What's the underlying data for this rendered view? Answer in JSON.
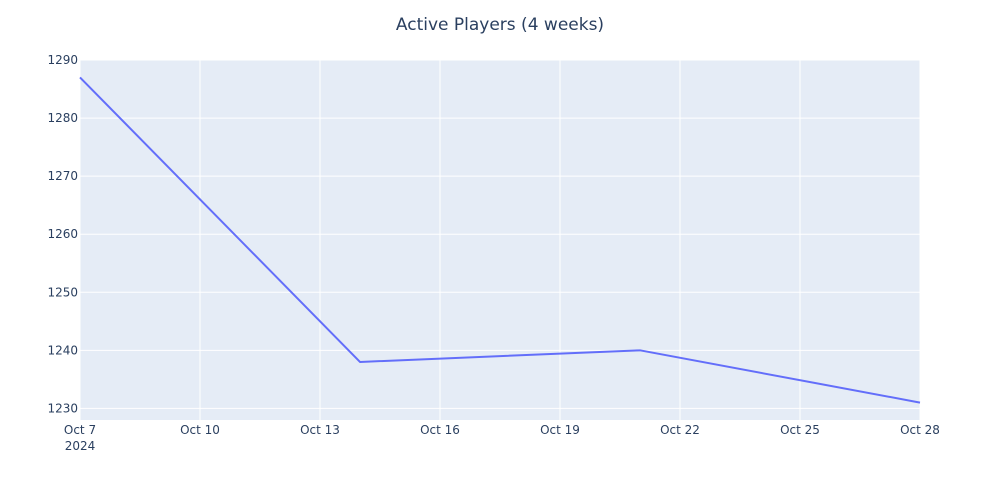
{
  "chart_data": {
    "type": "line",
    "title": "Active Players (4 weeks)",
    "xlabel": "",
    "ylabel": "",
    "x_axis_type": "date",
    "x": [
      "2024-10-07",
      "2024-10-14",
      "2024-10-21",
      "2024-10-28"
    ],
    "series": [
      {
        "values": [
          1287,
          1238,
          1240,
          1231
        ]
      }
    ],
    "xlim": [
      "2024-10-07",
      "2024-10-28"
    ],
    "ylim": [
      1228,
      1290
    ],
    "x_ticks": [
      {
        "date": "2024-10-07",
        "label": "Oct 7",
        "sublabel": "2024"
      },
      {
        "date": "2024-10-10",
        "label": "Oct 10"
      },
      {
        "date": "2024-10-13",
        "label": "Oct 13"
      },
      {
        "date": "2024-10-16",
        "label": "Oct 16"
      },
      {
        "date": "2024-10-19",
        "label": "Oct 19"
      },
      {
        "date": "2024-10-22",
        "label": "Oct 22"
      },
      {
        "date": "2024-10-25",
        "label": "Oct 25"
      },
      {
        "date": "2024-10-28",
        "label": "Oct 28"
      }
    ],
    "y_ticks": [
      1230,
      1240,
      1250,
      1260,
      1270,
      1280,
      1290
    ],
    "grid": true,
    "colors": {
      "plot_background": "#e5ecf6",
      "grid": "#ffffff",
      "line": "#636efa",
      "text": "#2a3f5f"
    }
  }
}
